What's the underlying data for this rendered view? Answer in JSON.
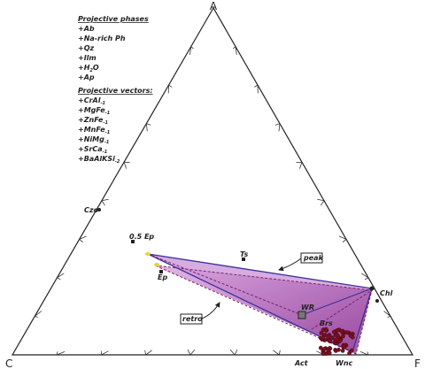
{
  "apices": {
    "top": "A",
    "left": "C",
    "right": "F"
  },
  "projective_phases": {
    "title": "Projective phases",
    "items": [
      {
        "text": "+Ab"
      },
      {
        "text": "+Na-rich Ph"
      },
      {
        "text": "+Qz"
      },
      {
        "text": "+Ilm"
      },
      {
        "text": "+H",
        "sub": "2",
        "after": "O"
      },
      {
        "text": "+Ap"
      }
    ]
  },
  "projective_vectors": {
    "title": "Projective vectors:",
    "items": [
      {
        "text": "+CrAl",
        "sub": "-1"
      },
      {
        "text": "+MgFe",
        "sub": "-1"
      },
      {
        "text": "+ZnFe",
        "sub": "-1"
      },
      {
        "text": "+MnFe",
        "sub": "-1"
      },
      {
        "text": "+NiMg",
        "sub": "-1"
      },
      {
        "text": "+SrCa",
        "sub": "-1"
      },
      {
        "text": "+BaAlKSi",
        "sub": "-2"
      }
    ]
  },
  "points": {
    "czo": "Czo",
    "half_ep": "0.5 Ep",
    "ep": "Ep",
    "ts": "Ts",
    "chl": "Chl",
    "wr": "WR",
    "brs": "Brs",
    "act": "Act",
    "wnc": "Wnc"
  },
  "callouts": {
    "peak": "peak",
    "retro": "retro"
  }
}
